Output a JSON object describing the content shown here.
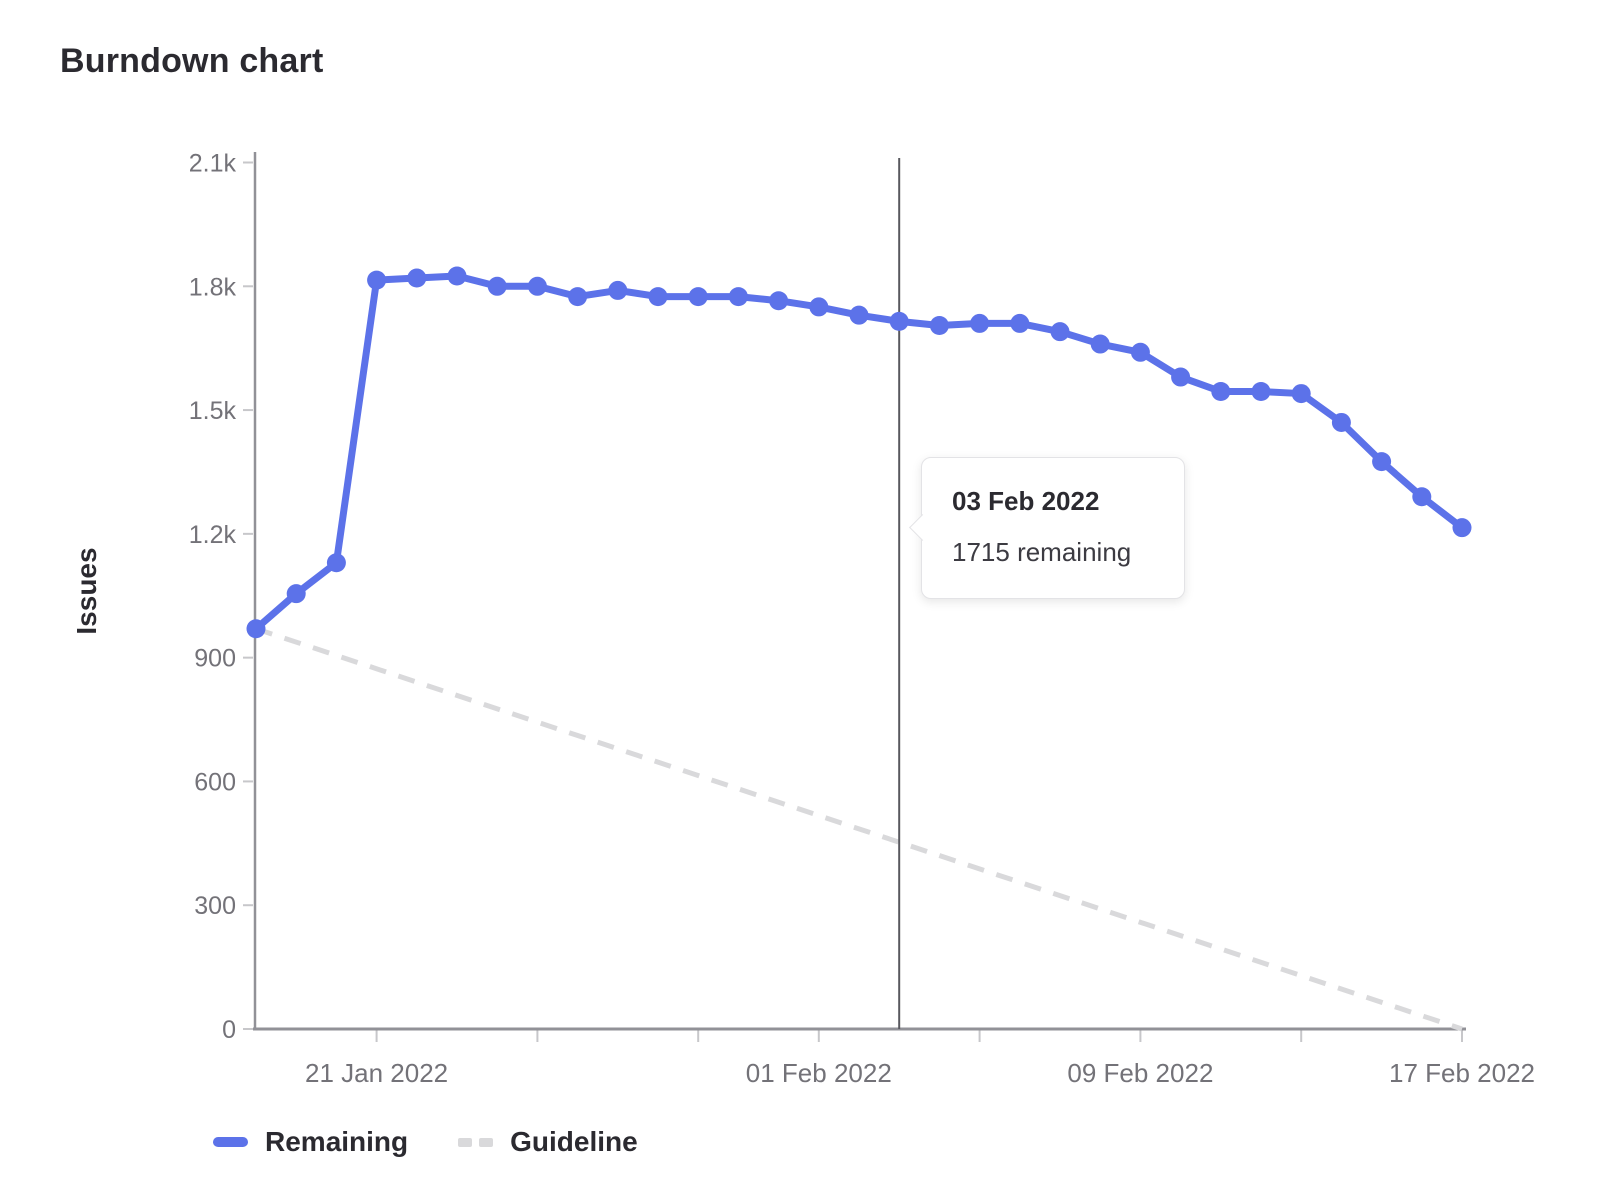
{
  "page": {
    "title": "Burndown chart"
  },
  "tooltip": {
    "title": "03 Feb 2022",
    "body": "1715 remaining"
  },
  "legend": [
    {
      "label": "Remaining",
      "type": "solid",
      "color": "#5c72e9"
    },
    {
      "label": "Guideline",
      "type": "dashed",
      "color": "#d9d9db"
    }
  ],
  "chart_data": {
    "type": "line",
    "title": "Burndown chart",
    "xlabel": "",
    "ylabel": "Issues",
    "ylim": [
      0,
      2100
    ],
    "grid": false,
    "legend_position": "bottom-left",
    "x": [
      "18 Jan 2022",
      "19 Jan 2022",
      "20 Jan 2022",
      "21 Jan 2022",
      "22 Jan 2022",
      "23 Jan 2022",
      "24 Jan 2022",
      "25 Jan 2022",
      "26 Jan 2022",
      "27 Jan 2022",
      "28 Jan 2022",
      "29 Jan 2022",
      "30 Jan 2022",
      "31 Jan 2022",
      "01 Feb 2022",
      "02 Feb 2022",
      "03 Feb 2022",
      "04 Feb 2022",
      "05 Feb 2022",
      "06 Feb 2022",
      "07 Feb 2022",
      "08 Feb 2022",
      "09 Feb 2022",
      "10 Feb 2022",
      "11 Feb 2022",
      "12 Feb 2022",
      "13 Feb 2022",
      "14 Feb 2022",
      "15 Feb 2022",
      "16 Feb 2022",
      "17 Feb 2022"
    ],
    "x_ticks": [
      {
        "index": 3,
        "label": "21 Jan 2022"
      },
      {
        "index": 7,
        "label": ""
      },
      {
        "index": 11,
        "label": ""
      },
      {
        "index": 14,
        "label": "01 Feb 2022"
      },
      {
        "index": 18,
        "label": ""
      },
      {
        "index": 22,
        "label": "09 Feb 2022"
      },
      {
        "index": 26,
        "label": ""
      },
      {
        "index": 30,
        "label": "17 Feb 2022"
      }
    ],
    "y_ticks": [
      {
        "value": 0,
        "label": "0"
      },
      {
        "value": 300,
        "label": "300"
      },
      {
        "value": 600,
        "label": "600"
      },
      {
        "value": 900,
        "label": "900"
      },
      {
        "value": 1200,
        "label": "1.2k"
      },
      {
        "value": 1500,
        "label": "1.5k"
      },
      {
        "value": 1800,
        "label": "1.8k"
      },
      {
        "value": 2100,
        "label": "2.1k"
      }
    ],
    "series": [
      {
        "name": "Remaining",
        "color": "#5c72e9",
        "style": "solid",
        "values": [
          970,
          1055,
          1130,
          1815,
          1820,
          1825,
          1800,
          1800,
          1775,
          1790,
          1775,
          1775,
          1775,
          1765,
          1750,
          1730,
          1715,
          1705,
          1710,
          1710,
          1690,
          1660,
          1640,
          1580,
          1545,
          1545,
          1540,
          1470,
          1375,
          1290,
          1215
        ]
      },
      {
        "name": "Guideline",
        "color": "#d9d9db",
        "style": "dashed",
        "points": [
          {
            "index": 0,
            "value": 970
          },
          {
            "index": 30,
            "value": 0
          }
        ]
      }
    ],
    "today_line": {
      "index": 16,
      "date": "03 Feb 2022",
      "value": 1715,
      "color": "#58585e"
    },
    "axis_color": "#919197",
    "tick_mark_color": "#c7c7ca",
    "tick_label_color": "#737278"
  }
}
